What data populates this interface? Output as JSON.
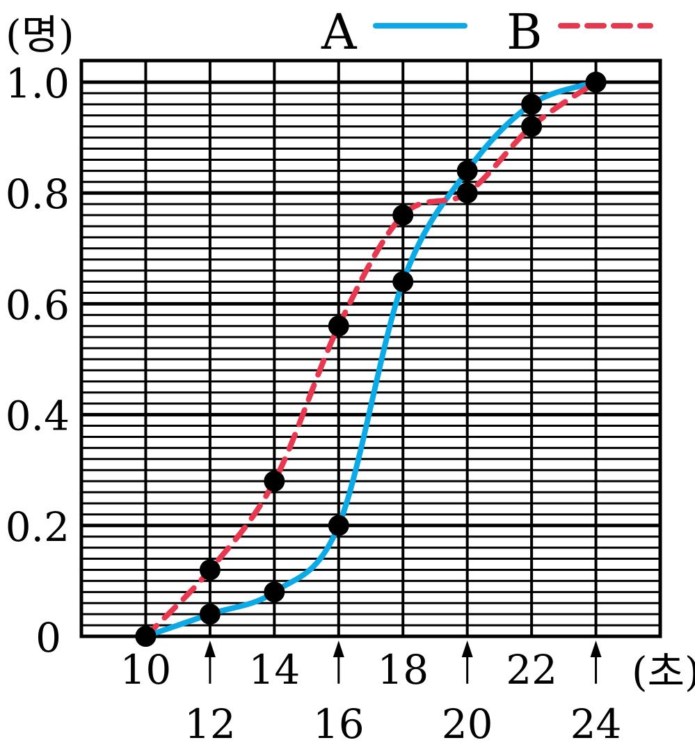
{
  "chart_data": {
    "type": "line",
    "xlabel": "(초)",
    "ylabel": "(명)",
    "x": [
      10,
      12,
      14,
      16,
      18,
      20,
      22,
      24
    ],
    "x_ticks_upper": [
      "10",
      "14",
      "18",
      "22"
    ],
    "x_ticks_lower": [
      "12",
      "16",
      "20",
      "24"
    ],
    "y_ticks": [
      "0",
      "0.2",
      "0.4",
      "0.6",
      "0.8",
      "1.0"
    ],
    "xlim": [
      8,
      26
    ],
    "ylim": [
      0,
      1.0
    ],
    "legend_position": "top-right",
    "series": [
      {
        "name": "A",
        "style": "solid",
        "color": "#0BA9E6",
        "values": [
          0,
          0.04,
          0.08,
          0.2,
          0.64,
          0.84,
          0.96,
          1.0
        ]
      },
      {
        "name": "B",
        "style": "dashed",
        "color": "#E8384F",
        "values": [
          0,
          0.12,
          0.28,
          0.56,
          0.76,
          0.8,
          0.92,
          1.0
        ]
      }
    ]
  }
}
